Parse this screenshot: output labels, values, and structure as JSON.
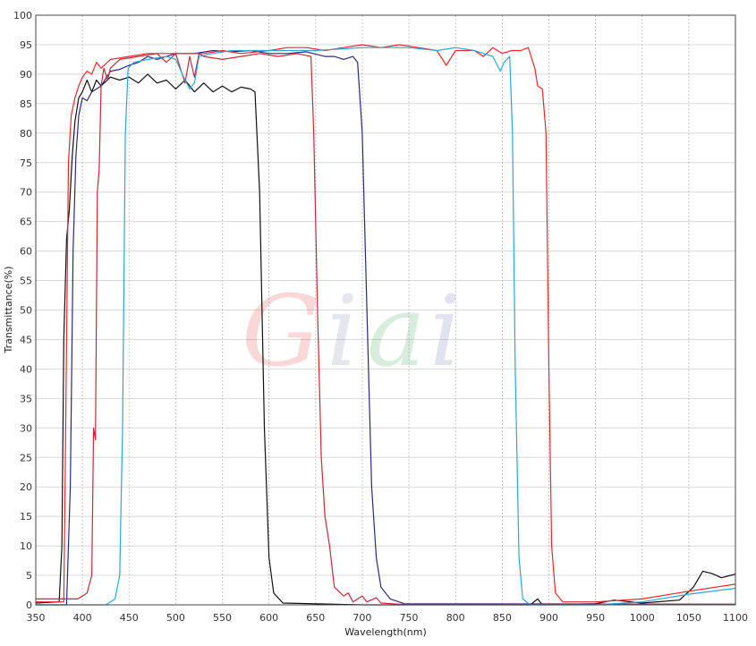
{
  "chart_data": {
    "type": "line",
    "title": "",
    "xlabel": "Wavelength(nm)",
    "ylabel": "Transmittance(%)",
    "xlim": [
      350,
      1100
    ],
    "ylim": [
      0,
      100
    ],
    "xticks": [
      350,
      400,
      450,
      500,
      550,
      600,
      650,
      700,
      750,
      800,
      850,
      900,
      950,
      1000,
      1050,
      1100
    ],
    "yticks": [
      0,
      5,
      10,
      15,
      20,
      25,
      30,
      35,
      40,
      45,
      50,
      55,
      60,
      65,
      70,
      75,
      80,
      85,
      90,
      95,
      100
    ],
    "grid": true,
    "legend": "none",
    "watermark": "Giai",
    "series": [
      {
        "color": "#111111",
        "points": [
          [
            350,
            0.3
          ],
          [
            375,
            0.5
          ],
          [
            378,
            10
          ],
          [
            380,
            45
          ],
          [
            383,
            62
          ],
          [
            386,
            67
          ],
          [
            389,
            76
          ],
          [
            392,
            82
          ],
          [
            396,
            86
          ],
          [
            400,
            87
          ],
          [
            405,
            89
          ],
          [
            410,
            87
          ],
          [
            415,
            89
          ],
          [
            420,
            88
          ],
          [
            430,
            89.5
          ],
          [
            440,
            89
          ],
          [
            450,
            89.5
          ],
          [
            460,
            88.5
          ],
          [
            470,
            90
          ],
          [
            480,
            88.5
          ],
          [
            490,
            89
          ],
          [
            500,
            87.5
          ],
          [
            510,
            89
          ],
          [
            520,
            87
          ],
          [
            530,
            88.5
          ],
          [
            540,
            87
          ],
          [
            550,
            88
          ],
          [
            560,
            87
          ],
          [
            570,
            87.8
          ],
          [
            580,
            87.5
          ],
          [
            585,
            87
          ],
          [
            590,
            70
          ],
          [
            595,
            30
          ],
          [
            600,
            8
          ],
          [
            605,
            2
          ],
          [
            615,
            0.3
          ],
          [
            700,
            0
          ],
          [
            880,
            0
          ],
          [
            888,
            1
          ],
          [
            893,
            0
          ],
          [
            950,
            0.2
          ],
          [
            970,
            0.8
          ],
          [
            1000,
            0.3
          ],
          [
            1040,
            0.8
          ],
          [
            1055,
            3
          ],
          [
            1065,
            5.7
          ],
          [
            1075,
            5.3
          ],
          [
            1085,
            4.6
          ],
          [
            1095,
            5
          ],
          [
            1100,
            5.2
          ]
        ]
      },
      {
        "color": "#2a2a7a",
        "points": [
          [
            350,
            0
          ],
          [
            383,
            0
          ],
          [
            387,
            20
          ],
          [
            390,
            60
          ],
          [
            393,
            76
          ],
          [
            396,
            83
          ],
          [
            400,
            86
          ],
          [
            405,
            85.5
          ],
          [
            410,
            87
          ],
          [
            420,
            88
          ],
          [
            430,
            90.5
          ],
          [
            440,
            90.8
          ],
          [
            450,
            91.5
          ],
          [
            460,
            92
          ],
          [
            470,
            93
          ],
          [
            480,
            92.5
          ],
          [
            500,
            93.5
          ],
          [
            520,
            93.5
          ],
          [
            540,
            94
          ],
          [
            560,
            93.8
          ],
          [
            580,
            94
          ],
          [
            600,
            93.5
          ],
          [
            620,
            93.5
          ],
          [
            640,
            93.8
          ],
          [
            660,
            93
          ],
          [
            670,
            93
          ],
          [
            680,
            92.5
          ],
          [
            690,
            93
          ],
          [
            695,
            92
          ],
          [
            700,
            80
          ],
          [
            705,
            50
          ],
          [
            710,
            20
          ],
          [
            715,
            8
          ],
          [
            720,
            3
          ],
          [
            730,
            1
          ],
          [
            745,
            0.2
          ],
          [
            1100,
            0.1
          ]
        ]
      },
      {
        "color": "#e8282e",
        "points": [
          [
            350,
            0.5
          ],
          [
            380,
            0.5
          ],
          [
            382,
            30
          ],
          [
            385,
            75
          ],
          [
            388,
            83
          ],
          [
            392,
            86
          ],
          [
            396,
            88
          ],
          [
            400,
            89.5
          ],
          [
            405,
            90.5
          ],
          [
            410,
            90
          ],
          [
            415,
            92
          ],
          [
            420,
            91
          ],
          [
            430,
            92.5
          ],
          [
            450,
            93
          ],
          [
            470,
            93.5
          ],
          [
            490,
            93.5
          ],
          [
            510,
            93.5
          ],
          [
            530,
            93.5
          ],
          [
            550,
            94
          ],
          [
            570,
            93.5
          ],
          [
            600,
            94
          ],
          [
            620,
            94.5
          ],
          [
            640,
            94.5
          ],
          [
            660,
            94
          ],
          [
            680,
            94.5
          ],
          [
            700,
            95
          ],
          [
            720,
            94.5
          ],
          [
            740,
            95
          ],
          [
            760,
            94.5
          ],
          [
            780,
            94
          ],
          [
            790,
            91.5
          ],
          [
            800,
            94
          ],
          [
            820,
            94
          ],
          [
            830,
            93
          ],
          [
            840,
            94.5
          ],
          [
            850,
            93.5
          ],
          [
            860,
            94
          ],
          [
            870,
            94
          ],
          [
            878,
            94.5
          ],
          [
            885,
            91
          ],
          [
            888,
            88
          ],
          [
            893,
            87.5
          ],
          [
            897,
            80
          ],
          [
            900,
            40
          ],
          [
            903,
            10
          ],
          [
            907,
            2
          ],
          [
            915,
            0.5
          ],
          [
            950,
            0.5
          ],
          [
            1000,
            1
          ],
          [
            1050,
            2.3
          ],
          [
            1100,
            3.5
          ]
        ]
      },
      {
        "color": "#c8283a",
        "points": [
          [
            350,
            1
          ],
          [
            395,
            1
          ],
          [
            400,
            1.5
          ],
          [
            405,
            2
          ],
          [
            410,
            5
          ],
          [
            412,
            30
          ],
          [
            414,
            28
          ],
          [
            416,
            70
          ],
          [
            418,
            74
          ],
          [
            420,
            88
          ],
          [
            423,
            91
          ],
          [
            427,
            89
          ],
          [
            430,
            91
          ],
          [
            440,
            92.5
          ],
          [
            460,
            93
          ],
          [
            480,
            93.5
          ],
          [
            490,
            92
          ],
          [
            500,
            93.5
          ],
          [
            510,
            88.5
          ],
          [
            515,
            93
          ],
          [
            520,
            89.5
          ],
          [
            525,
            93.5
          ],
          [
            530,
            93
          ],
          [
            550,
            92.5
          ],
          [
            570,
            93
          ],
          [
            590,
            93.5
          ],
          [
            610,
            93
          ],
          [
            630,
            93.5
          ],
          [
            645,
            93
          ],
          [
            648,
            80
          ],
          [
            652,
            50
          ],
          [
            656,
            25
          ],
          [
            660,
            15
          ],
          [
            665,
            10
          ],
          [
            670,
            3
          ],
          [
            680,
            1.5
          ],
          [
            685,
            2
          ],
          [
            690,
            0.5
          ],
          [
            700,
            1.5
          ],
          [
            705,
            0.5
          ],
          [
            715,
            1.2
          ],
          [
            720,
            0.3
          ],
          [
            740,
            0.1
          ],
          [
            1100,
            0.1
          ]
        ]
      },
      {
        "color": "#29a8d8",
        "points": [
          [
            350,
            0
          ],
          [
            425,
            0
          ],
          [
            435,
            1
          ],
          [
            440,
            5
          ],
          [
            443,
            30
          ],
          [
            446,
            80
          ],
          [
            449,
            91
          ],
          [
            455,
            92
          ],
          [
            470,
            92.5
          ],
          [
            490,
            93
          ],
          [
            500,
            92.5
          ],
          [
            510,
            89
          ],
          [
            515,
            87.5
          ],
          [
            520,
            88.5
          ],
          [
            525,
            93
          ],
          [
            540,
            93.5
          ],
          [
            560,
            94
          ],
          [
            600,
            94
          ],
          [
            650,
            94
          ],
          [
            700,
            94.5
          ],
          [
            750,
            94.5
          ],
          [
            780,
            94
          ],
          [
            800,
            94.5
          ],
          [
            820,
            94
          ],
          [
            840,
            93
          ],
          [
            848,
            90.5
          ],
          [
            852,
            92
          ],
          [
            858,
            93
          ],
          [
            861,
            80
          ],
          [
            864,
            40
          ],
          [
            868,
            8
          ],
          [
            872,
            1
          ],
          [
            880,
            0
          ],
          [
            950,
            0
          ],
          [
            1000,
            0.5
          ],
          [
            1050,
            1.8
          ],
          [
            1100,
            2.8
          ]
        ]
      }
    ]
  }
}
